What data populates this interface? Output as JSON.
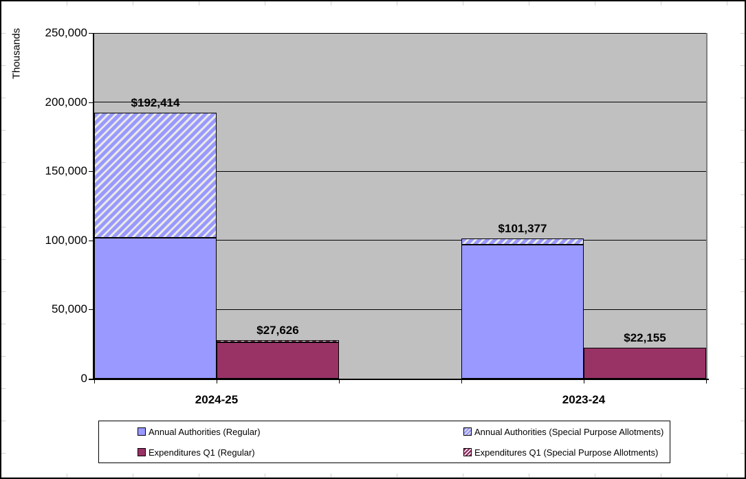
{
  "chart_data": {
    "type": "bar",
    "stacked": true,
    "title": "",
    "ylabel": "Thousands",
    "xlabel": "",
    "ylim": [
      0,
      250000
    ],
    "ytick_values": [
      0,
      50000,
      100000,
      150000,
      200000,
      250000
    ],
    "ytick_labels": [
      "0",
      "50,000",
      "100,000",
      "150,000",
      "200,000",
      "250,000"
    ],
    "grid": true,
    "legend_position": "bottom",
    "categories": [
      "2024-25",
      "2023-24"
    ],
    "segment_split_estimated": true,
    "groups": [
      {
        "category": "2024-25",
        "bars": [
          {
            "name": "annual-authorities",
            "label": "$192,414",
            "total": 192414,
            "segments": [
              {
                "key": "aa_regular",
                "value": 102000
              },
              {
                "key": "aa_spa",
                "value": 90414
              }
            ]
          },
          {
            "name": "expenditures-q1",
            "label": "$27,626",
            "total": 27626,
            "segments": [
              {
                "key": "exp_regular",
                "value": 26426
              },
              {
                "key": "exp_spa",
                "value": 1200
              }
            ]
          }
        ]
      },
      {
        "category": "2023-24",
        "bars": [
          {
            "name": "annual-authorities",
            "label": "$101,377",
            "total": 101377,
            "segments": [
              {
                "key": "aa_regular",
                "value": 96877
              },
              {
                "key": "aa_spa",
                "value": 4500
              }
            ]
          },
          {
            "name": "expenditures-q1",
            "label": "$22,155",
            "total": 22155,
            "segments": [
              {
                "key": "exp_regular",
                "value": 22155
              },
              {
                "key": "exp_spa",
                "value": 0
              }
            ]
          }
        ]
      }
    ],
    "legend": [
      {
        "key": "aa_regular",
        "label": "Annual Authorities (Regular)"
      },
      {
        "key": "aa_spa",
        "label": "Annual Authorities (Special Purpose Allotments)"
      },
      {
        "key": "exp_regular",
        "label": "Expenditures Q1 (Regular)"
      },
      {
        "key": "exp_spa",
        "label": "Expenditures Q1 (Special Purpose Allotments)"
      }
    ],
    "colors": {
      "aa_fill": "#9999FF",
      "exp_fill": "#993366",
      "aa_hatch_stripe": "#E8E8E4",
      "exp_hatch_stripe": "#FFFFFF",
      "plot_background": "#C0C0C0",
      "gridline": "#000000"
    }
  }
}
